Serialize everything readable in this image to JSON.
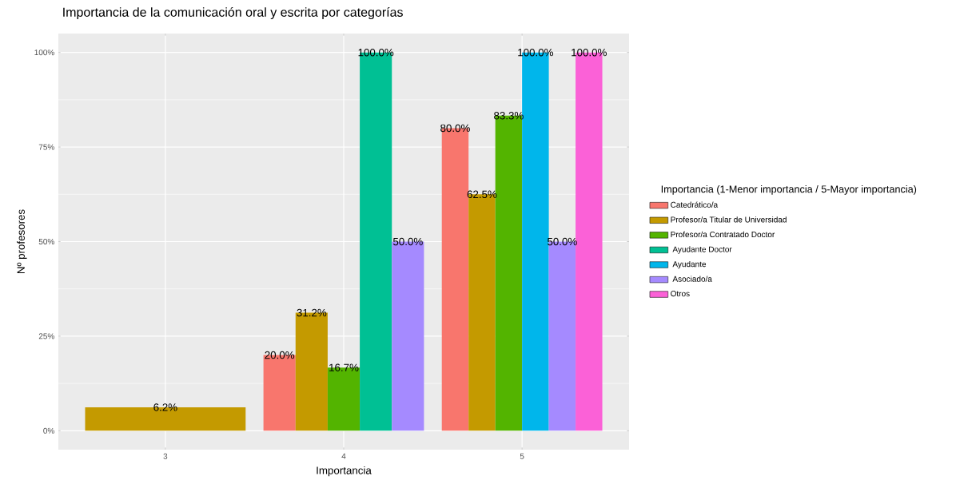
{
  "chart_data": {
    "type": "bar",
    "title": "Importancia de la comunicación oral y escrita por categorías",
    "xlabel": "Importancia",
    "ylabel": "Nº profesores",
    "legend_title": "Importancia (1-Menor importancia / 5-Mayor importancia)",
    "categories": [
      "3",
      "4",
      "5"
    ],
    "series": [
      {
        "name": "Catedrático/a",
        "color": "#f8766d",
        "values": [
          null,
          20.0,
          80.0
        ],
        "value_labels": [
          null,
          "20.0%",
          "80.0%"
        ]
      },
      {
        "name": "Profesor/a Titular de Universidad",
        "color": "#c49a00",
        "values": [
          6.2,
          31.2,
          62.5
        ],
        "value_labels": [
          "6.2%",
          "31.2%",
          "62.5%"
        ]
      },
      {
        "name": "Profesor/a Contratado Doctor",
        "color": "#53b400",
        "values": [
          null,
          16.7,
          83.3
        ],
        "value_labels": [
          null,
          "16.7%",
          "83.3%"
        ]
      },
      {
        "name": " Ayudante Doctor",
        "color": "#00c094",
        "values": [
          null,
          100.0,
          null
        ],
        "value_labels": [
          null,
          "100.0%",
          null
        ]
      },
      {
        "name": " Ayudante",
        "color": "#00b6eb",
        "values": [
          null,
          null,
          100.0
        ],
        "value_labels": [
          null,
          null,
          "100.0%"
        ]
      },
      {
        "name": " Asociado/a",
        "color": "#a58aff",
        "values": [
          null,
          50.0,
          50.0
        ],
        "value_labels": [
          null,
          "50.0%",
          "50.0%"
        ]
      },
      {
        "name": "Otros",
        "color": "#fb61d7",
        "values": [
          null,
          null,
          100.0
        ],
        "value_labels": [
          null,
          null,
          "100.0%"
        ]
      }
    ],
    "ylim": [
      -5,
      105
    ],
    "yticks": [
      {
        "value": 0,
        "label": "0%"
      },
      {
        "value": 25,
        "label": "25%"
      },
      {
        "value": 50,
        "label": "50%"
      },
      {
        "value": 75,
        "label": "75%"
      },
      {
        "value": 100,
        "label": "100%"
      }
    ],
    "grid": true,
    "legend": "right"
  }
}
